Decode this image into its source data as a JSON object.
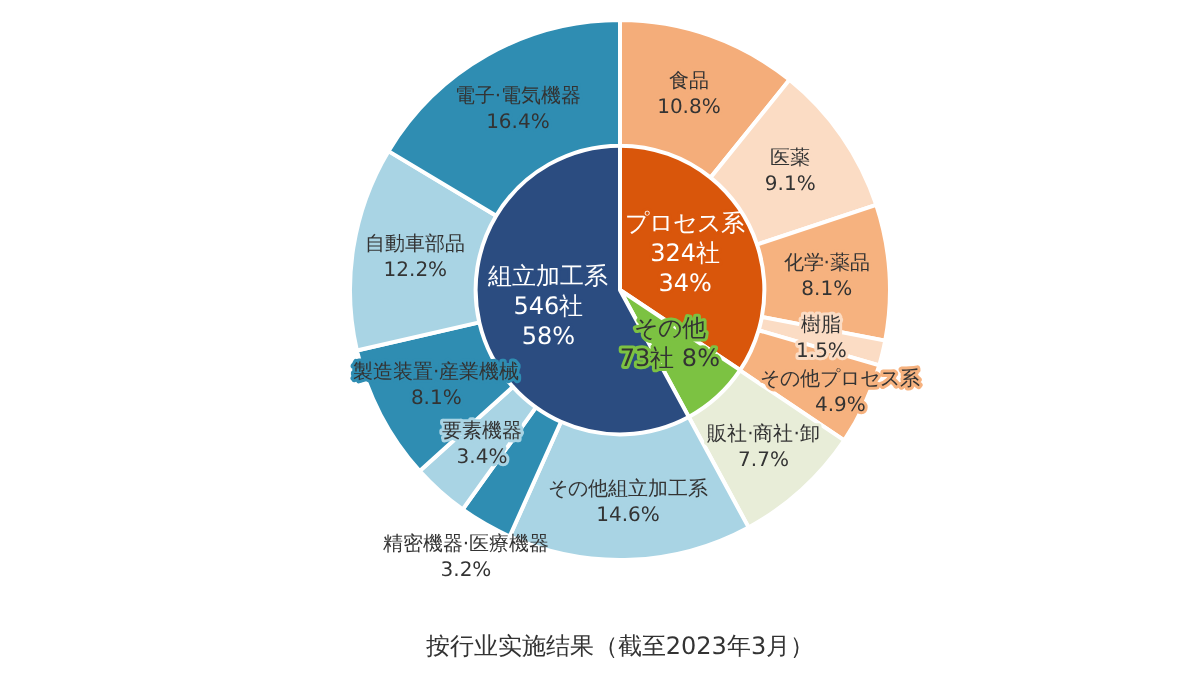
{
  "chart_data": [
    {
      "type": "donut",
      "legend": false,
      "title": "按行业实施结果（截至2023年3月）",
      "categories": [
        "食品",
        "医薬",
        "化学·薬品",
        "樹脂",
        "その他プロセス系",
        "販社·商社·卸",
        "その他組立加工系",
        "精密機器·医療機器",
        "要素機器",
        "製造装置·産業機械",
        "自動車部品",
        "電子·電気機器"
      ],
      "values": [
        10.8,
        9.1,
        8.1,
        1.5,
        4.9,
        7.7,
        14.6,
        3.2,
        3.4,
        8.1,
        12.2,
        16.4
      ],
      "colors": [
        "#f4ad7a",
        "#fbdcc4",
        "#f6b27f",
        "#fbdcc4",
        "#f6b27f",
        "#e8edd8",
        "#a9d4e4",
        "#2f8db2",
        "#a9d4e4",
        "#2f8db2",
        "#a9d4e4",
        "#2f8db2"
      ],
      "value_labels": [
        "10.8%",
        "9.1%",
        "8.1%",
        "1.5%",
        "4.9%",
        "7.7%",
        "14.6%",
        "3.2%",
        "3.4%",
        "8.1%",
        "12.2%",
        "16.4%"
      ]
    },
    {
      "type": "pie",
      "legend": false,
      "categories": [
        "プロセス系",
        "その他",
        "組立加工系"
      ],
      "values": [
        324,
        73,
        546
      ],
      "colors": [
        "#d9560b",
        "#7cc242",
        "#2b4c80"
      ],
      "value_labels": [
        "324社\n34%",
        "73社 8%",
        "546社\n58%"
      ]
    }
  ]
}
